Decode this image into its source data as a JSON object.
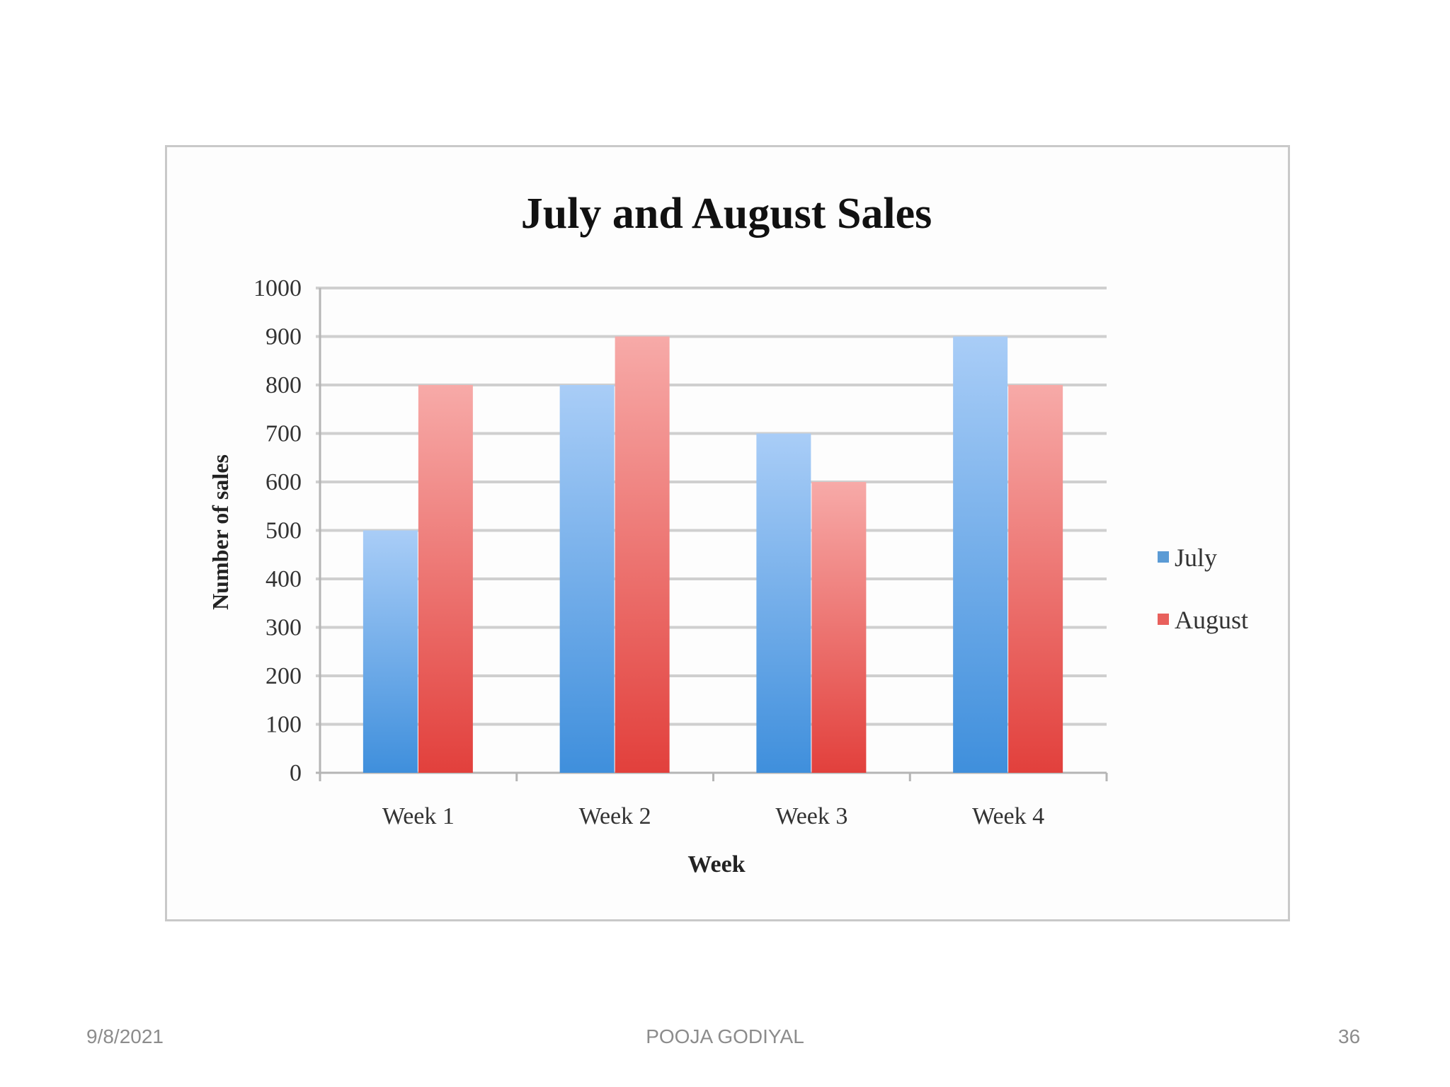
{
  "slide": {
    "date": "9/8/2021",
    "author": "POOJA GODIYAL",
    "page_number": "36"
  },
  "chart_data": {
    "type": "bar",
    "title": "July and August Sales",
    "xlabel": "Week",
    "ylabel": "Number of sales",
    "categories": [
      "Week 1",
      "Week 2",
      "Week 3",
      "Week 4"
    ],
    "series": [
      {
        "name": "July",
        "values": [
          500,
          800,
          700,
          900
        ],
        "color": "#5b9bd5"
      },
      {
        "name": "August",
        "values": [
          800,
          900,
          600,
          800
        ],
        "color": "#e8605c"
      }
    ],
    "ylim": [
      0,
      1000
    ],
    "yticks": [
      0,
      100,
      200,
      300,
      400,
      500,
      600,
      700,
      800,
      900,
      1000
    ],
    "grid": true,
    "legend_position": "right"
  }
}
